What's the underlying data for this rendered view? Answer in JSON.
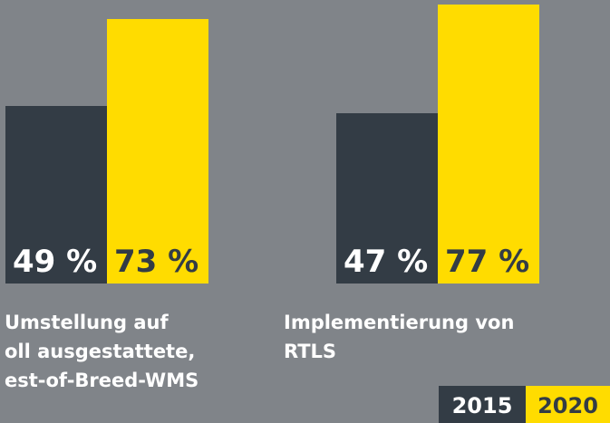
{
  "chart_data": {
    "type": "bar",
    "categories": [
      [
        "Umstellung auf",
        "oll ausgestattete,",
        "est-of-Breed-WMS"
      ],
      [
        "Implementierung von",
        "RTLS"
      ]
    ],
    "series": [
      {
        "name": "2015",
        "color": "#333c45",
        "values": [
          49,
          47
        ],
        "value_labels": [
          "49 %",
          "47 %"
        ]
      },
      {
        "name": "2020",
        "color": "#ffdc00",
        "values": [
          73,
          77
        ],
        "value_labels": [
          "73 %",
          "77 %"
        ]
      }
    ],
    "ylim": [
      0,
      78.25
    ]
  }
}
